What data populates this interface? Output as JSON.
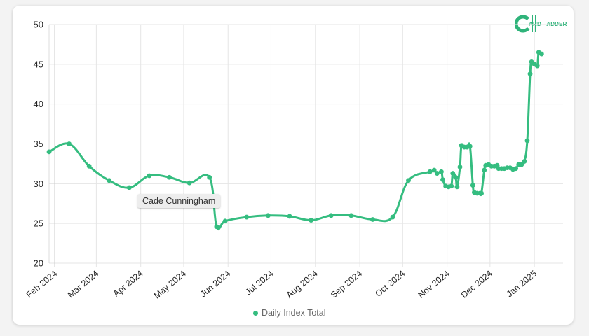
{
  "logo": {
    "text": "CARD LADDER",
    "parts": [
      "ARD",
      "ADDER"
    ],
    "color": "#2fb37a"
  },
  "tooltip": {
    "label": "Cade Cunningham"
  },
  "legend": {
    "label": "Daily Index Total"
  },
  "colors": {
    "line": "#35bd80",
    "grid": "#e5e5e5"
  },
  "chart_data": {
    "type": "line",
    "title": "",
    "xlabel": "",
    "ylabel": "",
    "ylim": [
      20,
      50
    ],
    "yticks": [
      20,
      25,
      30,
      35,
      40,
      45,
      50
    ],
    "grid": true,
    "legend_position": "bottom",
    "x_tick_labels": [
      "Feb 2024",
      "Mar 2024",
      "Apr 2024",
      "May 2024",
      "Jun 2024",
      "Jul 2024",
      "Aug 2024",
      "Sep 2024",
      "Oct 2024",
      "Nov 2024",
      "Dec 2024",
      "Jan 2025"
    ],
    "x_tick_dates": [
      "2024-02-01",
      "2024-03-01",
      "2024-04-01",
      "2024-05-01",
      "2024-06-01",
      "2024-07-01",
      "2024-08-01",
      "2024-09-01",
      "2024-10-01",
      "2024-11-01",
      "2024-12-01",
      "2025-01-01"
    ],
    "xlim": [
      "2024-01-28",
      "2025-01-21"
    ],
    "series": [
      {
        "name": "Daily Index Total",
        "points": [
          [
            "2024-01-28",
            34.0
          ],
          [
            "2024-02-11",
            35.0
          ],
          [
            "2024-02-25",
            32.2
          ],
          [
            "2024-03-10",
            30.4
          ],
          [
            "2024-03-24",
            29.5
          ],
          [
            "2024-04-07",
            31.0
          ],
          [
            "2024-04-21",
            30.8
          ],
          [
            "2024-05-05",
            30.1
          ],
          [
            "2024-05-19",
            30.8
          ],
          [
            "2024-05-24",
            24.6
          ],
          [
            "2024-05-30",
            25.3
          ],
          [
            "2024-06-14",
            25.8
          ],
          [
            "2024-06-29",
            26.0
          ],
          [
            "2024-07-14",
            25.9
          ],
          [
            "2024-07-29",
            25.4
          ],
          [
            "2024-08-12",
            26.0
          ],
          [
            "2024-08-26",
            26.0
          ],
          [
            "2024-09-10",
            25.5
          ],
          [
            "2024-09-24",
            25.8
          ],
          [
            "2024-10-05",
            30.4
          ],
          [
            "2024-10-20",
            31.5
          ],
          [
            "2024-10-23",
            31.7
          ],
          [
            "2024-10-25",
            31.3
          ],
          [
            "2024-10-28",
            31.5
          ],
          [
            "2024-10-29",
            30.5
          ],
          [
            "2024-10-31",
            29.7
          ],
          [
            "2024-11-02",
            29.6
          ],
          [
            "2024-11-04",
            29.7
          ],
          [
            "2024-11-05",
            31.3
          ],
          [
            "2024-11-07",
            30.8
          ],
          [
            "2024-11-08",
            29.6
          ],
          [
            "2024-11-10",
            32.1
          ],
          [
            "2024-11-11",
            34.8
          ],
          [
            "2024-11-13",
            34.6
          ],
          [
            "2024-11-15",
            34.6
          ],
          [
            "2024-11-17",
            34.7
          ],
          [
            "2024-11-19",
            29.8
          ],
          [
            "2024-11-20",
            28.9
          ],
          [
            "2024-11-22",
            28.8
          ],
          [
            "2024-11-24",
            28.8
          ],
          [
            "2024-11-25",
            28.8
          ],
          [
            "2024-11-27",
            31.7
          ],
          [
            "2024-11-28",
            32.3
          ],
          [
            "2024-11-30",
            32.4
          ],
          [
            "2024-12-02",
            32.2
          ],
          [
            "2024-12-04",
            32.2
          ],
          [
            "2024-12-06",
            32.3
          ],
          [
            "2024-12-07",
            31.9
          ],
          [
            "2024-12-09",
            31.9
          ],
          [
            "2024-12-11",
            31.9
          ],
          [
            "2024-12-13",
            32.0
          ],
          [
            "2024-12-15",
            32.0
          ],
          [
            "2024-12-17",
            31.8
          ],
          [
            "2024-12-19",
            31.9
          ],
          [
            "2024-12-21",
            32.4
          ],
          [
            "2024-12-23",
            32.4
          ],
          [
            "2024-12-25",
            32.8
          ],
          [
            "2024-12-27",
            35.4
          ],
          [
            "2024-12-29",
            43.8
          ],
          [
            "2024-12-30",
            45.3
          ],
          [
            "2025-01-01",
            45.0
          ],
          [
            "2025-01-03",
            44.8
          ],
          [
            "2025-01-04",
            46.5
          ],
          [
            "2025-01-06",
            46.3
          ]
        ]
      }
    ]
  }
}
